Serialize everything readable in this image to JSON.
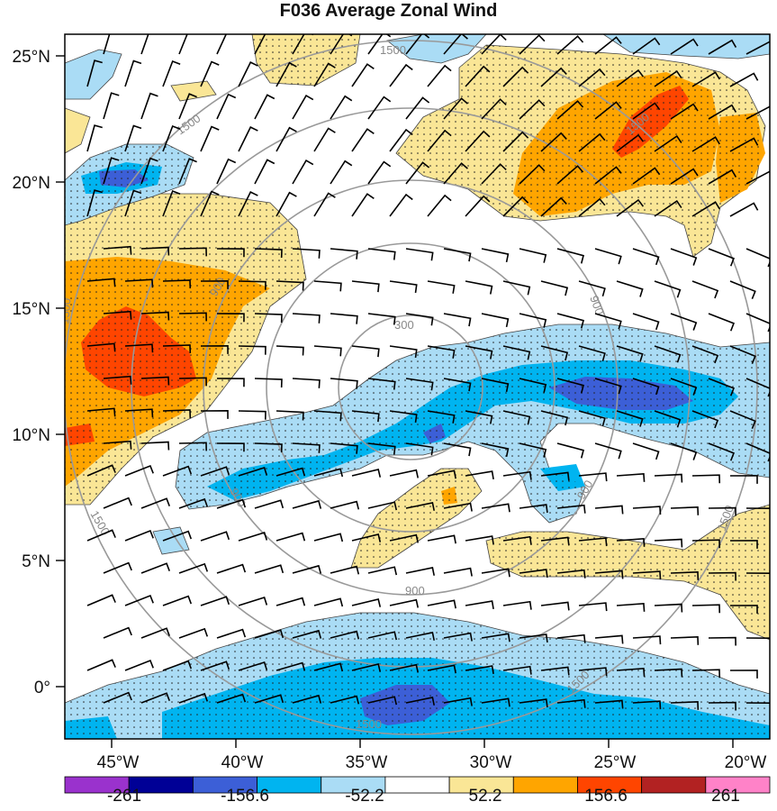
{
  "title": "F036 Average Zonal Wind",
  "map": {
    "lat_labels": [
      "25°N",
      "20°N",
      "15°N",
      "10°N",
      "5°N",
      "0°"
    ],
    "lon_labels": [
      "45°W",
      "40°W",
      "35°W",
      "30°W",
      "25°W",
      "20°W"
    ],
    "ring_labels": [
      "1500",
      "1500",
      "900",
      "900",
      "300",
      "900",
      "1500",
      "900",
      "1500",
      "900",
      "1500",
      "1500",
      "1500",
      "1500"
    ],
    "range_ring_color": "#999999",
    "stipple": "dotted"
  },
  "colorbar": {
    "colors": [
      "#9a32cd",
      "#000096",
      "#3c5fd7",
      "#00b4f0",
      "#aadcf5",
      "#ffffff",
      "#fae696",
      "#ffa500",
      "#ff4500",
      "#b22222",
      "#ff82c8"
    ],
    "labels": [
      "-261",
      "-156.6",
      "-52.2",
      "52.2",
      "156.6",
      "261"
    ]
  },
  "legend_colors": {
    "neg_light": "#aadcf5",
    "neg_mid": "#00b4f0",
    "neg_dark": "#3c5fd7",
    "pos_light": "#fae696",
    "pos_mid": "#ffa500",
    "pos_dark": "#ff4500"
  }
}
